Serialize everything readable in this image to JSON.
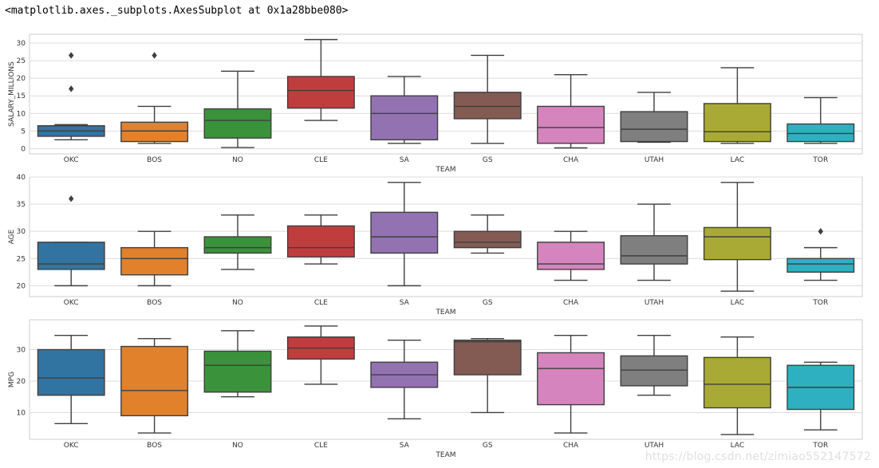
{
  "output_repr": "<matplotlib.axes._subplots.AxesSubplot at 0x1a28bbe080>",
  "watermark": "https://blog.csdn.net/zimiao552147572",
  "chart_data": [
    {
      "type": "box",
      "xlabel": "TEAM",
      "ylabel": "SALARY_MILLIONS",
      "ylim": [
        -1.5,
        32.5
      ],
      "yticks": [
        0,
        5,
        10,
        15,
        20,
        25,
        30
      ],
      "grid": true,
      "categories": [
        "OKC",
        "BOS",
        "NO",
        "CLE",
        "SA",
        "GS",
        "CHA",
        "UTAH",
        "LAC",
        "TOR"
      ],
      "colors": [
        "#3274a1",
        "#e1812c",
        "#3a923a",
        "#c03d3e",
        "#9372b2",
        "#845b53",
        "#d684bd",
        "#7f7f7f",
        "#a9aa35",
        "#2eb0c1"
      ],
      "boxes": [
        {
          "whislo": 2.5,
          "q1": 3.5,
          "med": 5.0,
          "q3": 6.5,
          "whishi": 6.8,
          "fliers": [
            17.0,
            26.5
          ]
        },
        {
          "whislo": 1.5,
          "q1": 2.0,
          "med": 5.0,
          "q3": 7.5,
          "whishi": 12.0,
          "fliers": [
            26.5
          ]
        },
        {
          "whislo": 0.3,
          "q1": 3.0,
          "med": 8.0,
          "q3": 11.3,
          "whishi": 22.0,
          "fliers": []
        },
        {
          "whislo": 8.0,
          "q1": 11.5,
          "med": 16.5,
          "q3": 20.5,
          "whishi": 31.0,
          "fliers": []
        },
        {
          "whislo": 1.5,
          "q1": 2.5,
          "med": 10.0,
          "q3": 15.0,
          "whishi": 20.5,
          "fliers": []
        },
        {
          "whislo": 1.5,
          "q1": 8.5,
          "med": 12.0,
          "q3": 16.0,
          "whishi": 26.5,
          "fliers": []
        },
        {
          "whislo": 0.2,
          "q1": 1.5,
          "med": 6.0,
          "q3": 12.0,
          "whishi": 21.0,
          "fliers": []
        },
        {
          "whislo": 1.8,
          "q1": 2.0,
          "med": 5.5,
          "q3": 10.5,
          "whishi": 16.0,
          "fliers": []
        },
        {
          "whislo": 1.5,
          "q1": 2.0,
          "med": 4.8,
          "q3": 12.8,
          "whishi": 23.0,
          "fliers": []
        },
        {
          "whislo": 1.5,
          "q1": 2.0,
          "med": 4.3,
          "q3": 7.0,
          "whishi": 14.5,
          "fliers": []
        }
      ]
    },
    {
      "type": "box",
      "xlabel": "TEAM",
      "ylabel": "AGE",
      "ylim": [
        18,
        40
      ],
      "yticks": [
        20,
        25,
        30,
        35,
        40
      ],
      "grid": true,
      "categories": [
        "OKC",
        "BOS",
        "NO",
        "CLE",
        "SA",
        "GS",
        "CHA",
        "UTAH",
        "LAC",
        "TOR"
      ],
      "colors": [
        "#3274a1",
        "#e1812c",
        "#3a923a",
        "#c03d3e",
        "#9372b2",
        "#845b53",
        "#d684bd",
        "#7f7f7f",
        "#a9aa35",
        "#2eb0c1"
      ],
      "boxes": [
        {
          "whislo": 20,
          "q1": 23,
          "med": 24,
          "q3": 28,
          "whishi": 28,
          "fliers": [
            36
          ]
        },
        {
          "whislo": 20,
          "q1": 22,
          "med": 25,
          "q3": 27,
          "whishi": 30,
          "fliers": []
        },
        {
          "whislo": 23,
          "q1": 26,
          "med": 27,
          "q3": 29,
          "whishi": 33,
          "fliers": []
        },
        {
          "whislo": 24,
          "q1": 25.3,
          "med": 27,
          "q3": 31,
          "whishi": 33,
          "fliers": []
        },
        {
          "whislo": 20,
          "q1": 26,
          "med": 29,
          "q3": 33.5,
          "whishi": 39,
          "fliers": []
        },
        {
          "whislo": 26,
          "q1": 27,
          "med": 28,
          "q3": 30,
          "whishi": 33,
          "fliers": []
        },
        {
          "whislo": 21,
          "q1": 23,
          "med": 24,
          "q3": 28,
          "whishi": 30,
          "fliers": []
        },
        {
          "whislo": 21,
          "q1": 24,
          "med": 25.5,
          "q3": 29.2,
          "whishi": 35,
          "fliers": []
        },
        {
          "whislo": 19,
          "q1": 24.8,
          "med": 29,
          "q3": 30.7,
          "whishi": 39,
          "fliers": []
        },
        {
          "whislo": 21,
          "q1": 22.5,
          "med": 24,
          "q3": 25,
          "whishi": 27,
          "fliers": [
            30
          ]
        }
      ]
    },
    {
      "type": "box",
      "xlabel": "TEAM",
      "ylabel": "MPG",
      "ylim": [
        1.5,
        39.5
      ],
      "yticks": [
        10,
        20,
        30
      ],
      "grid": true,
      "categories": [
        "OKC",
        "BOS",
        "NO",
        "CLE",
        "SA",
        "GS",
        "CHA",
        "UTAH",
        "LAC",
        "TOR"
      ],
      "colors": [
        "#3274a1",
        "#e1812c",
        "#3a923a",
        "#c03d3e",
        "#9372b2",
        "#845b53",
        "#d684bd",
        "#7f7f7f",
        "#a9aa35",
        "#2eb0c1"
      ],
      "boxes": [
        {
          "whislo": 6.5,
          "q1": 15.5,
          "med": 21.0,
          "q3": 30.0,
          "whishi": 34.5,
          "fliers": []
        },
        {
          "whislo": 3.5,
          "q1": 9.0,
          "med": 17.0,
          "q3": 31.0,
          "whishi": 33.5,
          "fliers": []
        },
        {
          "whislo": 15.0,
          "q1": 16.5,
          "med": 25.0,
          "q3": 29.5,
          "whishi": 36.0,
          "fliers": []
        },
        {
          "whislo": 19.0,
          "q1": 27.0,
          "med": 30.5,
          "q3": 34.0,
          "whishi": 37.5,
          "fliers": []
        },
        {
          "whislo": 8.0,
          "q1": 18.0,
          "med": 22.0,
          "q3": 26.0,
          "whishi": 33.0,
          "fliers": []
        },
        {
          "whislo": 10.0,
          "q1": 22.0,
          "med": 32.5,
          "q3": 33.0,
          "whishi": 33.5,
          "fliers": []
        },
        {
          "whislo": 3.5,
          "q1": 12.5,
          "med": 24.0,
          "q3": 29.0,
          "whishi": 34.5,
          "fliers": []
        },
        {
          "whislo": 15.5,
          "q1": 18.5,
          "med": 23.5,
          "q3": 28.0,
          "whishi": 34.5,
          "fliers": []
        },
        {
          "whislo": 3.0,
          "q1": 11.5,
          "med": 19.0,
          "q3": 27.5,
          "whishi": 34.0,
          "fliers": []
        },
        {
          "whislo": 4.5,
          "q1": 11.0,
          "med": 18.0,
          "q3": 25.0,
          "whishi": 26.0,
          "fliers": []
        }
      ]
    }
  ]
}
